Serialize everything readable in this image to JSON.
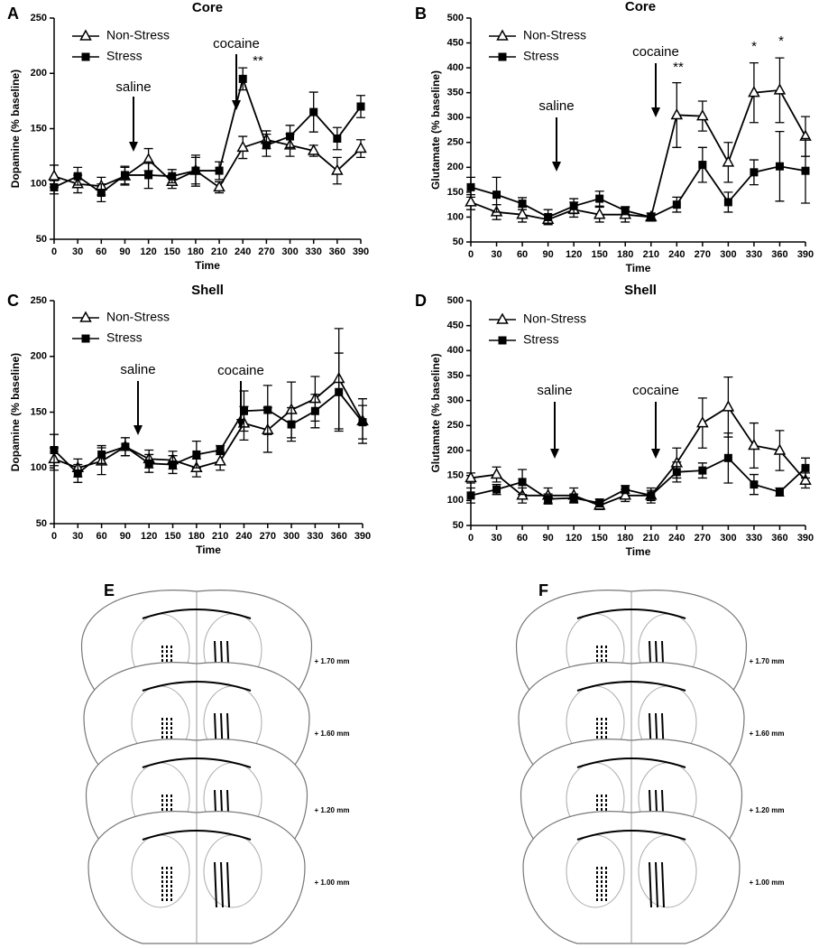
{
  "chart_data": [
    {
      "type": "line",
      "label": "A",
      "title": "Core",
      "xlabel": "Time",
      "ylabel": "Dopamine (% baseline)",
      "x": [
        0,
        30,
        60,
        90,
        120,
        150,
        180,
        210,
        240,
        270,
        300,
        330,
        360,
        390
      ],
      "xlim": [
        0,
        390
      ],
      "xticks": [
        0,
        30,
        60,
        90,
        120,
        150,
        180,
        210,
        240,
        270,
        300,
        330,
        360,
        390
      ],
      "ylim": [
        50,
        250
      ],
      "yticks": [
        50,
        100,
        150,
        200,
        250
      ],
      "legend": "upper-left",
      "annotations": [
        "saline",
        "cocaine",
        "**"
      ],
      "series": [
        {
          "name": "Non-Stress",
          "color": "#000000",
          "marker": "open-triangle",
          "values": [
            107,
            100,
            98,
            107,
            122,
            102,
            112,
            97,
            133,
            140,
            135,
            130,
            112,
            132
          ],
          "errors": [
            10,
            8,
            8,
            8,
            10,
            6,
            12,
            5,
            10,
            8,
            10,
            5,
            12,
            8
          ]
        },
        {
          "name": "Stress",
          "color": "#000000",
          "marker": "filled-square",
          "values": [
            97,
            107,
            92,
            108,
            108,
            107,
            112,
            112,
            195,
            135,
            143,
            165,
            141,
            170
          ],
          "errors": [
            6,
            8,
            8,
            8,
            12,
            6,
            14,
            8,
            10,
            10,
            10,
            18,
            10,
            10
          ]
        }
      ]
    },
    {
      "type": "line",
      "label": "B",
      "title": "Core",
      "xlabel": "Time",
      "ylabel": "Glutamate (% baseline)",
      "x": [
        0,
        30,
        60,
        90,
        120,
        150,
        180,
        210,
        240,
        270,
        300,
        330,
        360,
        390
      ],
      "xlim": [
        0,
        390
      ],
      "xticks": [
        0,
        30,
        60,
        90,
        120,
        150,
        180,
        210,
        240,
        270,
        300,
        330,
        360,
        390
      ],
      "ylim": [
        50,
        500
      ],
      "yticks": [
        50,
        100,
        150,
        200,
        250,
        300,
        350,
        400,
        450,
        500
      ],
      "legend": "upper-left",
      "annotations": [
        "saline",
        "cocaine",
        "**",
        "*",
        "*"
      ],
      "series": [
        {
          "name": "Non-Stress",
          "color": "#000000",
          "marker": "open-triangle",
          "values": [
            130,
            110,
            105,
            95,
            115,
            105,
            105,
            100,
            305,
            303,
            210,
            350,
            355,
            262
          ],
          "errors": [
            15,
            15,
            15,
            10,
            15,
            15,
            15,
            8,
            65,
            30,
            40,
            60,
            65,
            40
          ]
        },
        {
          "name": "Stress",
          "color": "#000000",
          "marker": "filled-square",
          "values": [
            160,
            145,
            127,
            100,
            122,
            137,
            113,
            100,
            125,
            205,
            130,
            190,
            202,
            193
          ],
          "errors": [
            20,
            35,
            12,
            15,
            15,
            15,
            8,
            8,
            15,
            35,
            20,
            25,
            70,
            65
          ]
        }
      ]
    },
    {
      "type": "line",
      "label": "C",
      "title": "Shell",
      "xlabel": "Time",
      "ylabel": "Dopamine (% baseline)",
      "x": [
        0,
        30,
        60,
        90,
        120,
        150,
        180,
        210,
        240,
        270,
        300,
        330,
        360,
        390
      ],
      "xlim": [
        0,
        390
      ],
      "xticks": [
        0,
        30,
        60,
        90,
        120,
        150,
        180,
        210,
        240,
        270,
        300,
        330,
        360,
        390
      ],
      "ylim": [
        50,
        250
      ],
      "yticks": [
        50,
        100,
        150,
        200,
        250
      ],
      "legend": "upper-left",
      "annotations": [
        "saline",
        "cocaine"
      ],
      "series": [
        {
          "name": "Non-Stress",
          "color": "#000000",
          "marker": "open-triangle",
          "values": [
            108,
            100,
            106,
            119,
            108,
            107,
            100,
            106,
            140,
            134,
            152,
            162,
            180,
            142
          ],
          "errors": [
            10,
            8,
            12,
            8,
            8,
            8,
            8,
            8,
            15,
            20,
            25,
            20,
            45,
            20
          ]
        },
        {
          "name": "Stress",
          "color": "#000000",
          "marker": "filled-square",
          "values": [
            116,
            95,
            112,
            119,
            104,
            103,
            112,
            116,
            151,
            152,
            139,
            151,
            168,
            141
          ],
          "errors": [
            14,
            8,
            8,
            8,
            8,
            8,
            12,
            4,
            18,
            22,
            15,
            15,
            35,
            15
          ]
        }
      ]
    },
    {
      "type": "line",
      "label": "D",
      "title": "Shell",
      "xlabel": "Time",
      "ylabel": "Glutamate (% baseline)",
      "x": [
        0,
        30,
        60,
        90,
        120,
        150,
        180,
        210,
        240,
        270,
        300,
        330,
        360,
        390
      ],
      "xlim": [
        0,
        390
      ],
      "xticks": [
        0,
        30,
        60,
        90,
        120,
        150,
        180,
        210,
        240,
        270,
        300,
        330,
        360,
        390
      ],
      "ylim": [
        50,
        500
      ],
      "yticks": [
        50,
        100,
        150,
        200,
        250,
        300,
        350,
        400,
        450,
        500
      ],
      "legend": "upper-left",
      "annotations": [
        "saline",
        "cocaine"
      ],
      "series": [
        {
          "name": "Non-Stress",
          "color": "#000000",
          "marker": "open-triangle",
          "values": [
            145,
            152,
            110,
            110,
            110,
            90,
            110,
            110,
            175,
            255,
            287,
            210,
            200,
            140
          ],
          "errors": [
            10,
            15,
            15,
            15,
            15,
            8,
            12,
            15,
            30,
            50,
            60,
            45,
            40,
            15
          ]
        },
        {
          "name": "Stress",
          "color": "#000000",
          "marker": "filled-square",
          "values": [
            110,
            122,
            137,
            103,
            105,
            95,
            122,
            110,
            157,
            160,
            185,
            132,
            117,
            165
          ],
          "errors": [
            15,
            10,
            25,
            10,
            8,
            8,
            8,
            10,
            20,
            15,
            50,
            20,
            8,
            20
          ]
        }
      ]
    }
  ],
  "panels": [
    {
      "label": "E",
      "levels": [
        "+ 1.70 mm",
        "+ 1.60 mm",
        "+ 1.20 mm",
        "+ 1.00 mm"
      ]
    },
    {
      "label": "F",
      "levels": [
        "+ 1.70 mm",
        "+ 1.60 mm",
        "+ 1.20 mm",
        "+ 1.00 mm"
      ]
    }
  ]
}
